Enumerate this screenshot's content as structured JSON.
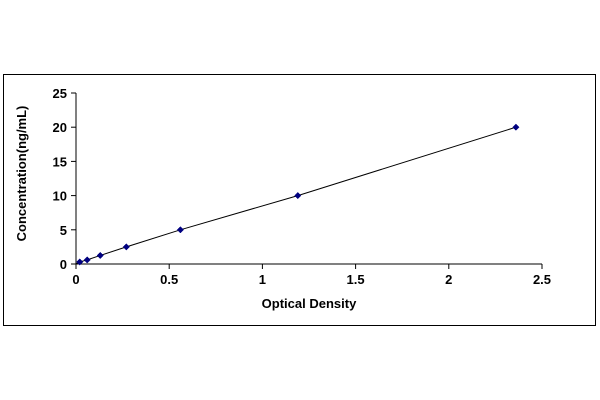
{
  "chart_data": {
    "type": "scatter",
    "title": "",
    "xlabel": "Optical Density",
    "ylabel": "Concentration(ng/mL)",
    "xlim": [
      0,
      2.5
    ],
    "ylim": [
      0,
      25
    ],
    "x_ticks": [
      "0",
      "0.5",
      "1",
      "1.5",
      "2",
      "2.5"
    ],
    "y_ticks": [
      "0",
      "5",
      "10",
      "15",
      "20",
      "25"
    ],
    "grid": false,
    "legend": "none",
    "series": [
      {
        "marker": "diamond",
        "line": "straight",
        "color": "#000080",
        "x": [
          0.02,
          0.06,
          0.13,
          0.27,
          0.56,
          1.19,
          2.36
        ],
        "y": [
          0.3,
          0.6,
          1.25,
          2.5,
          5,
          10,
          20
        ]
      }
    ]
  }
}
